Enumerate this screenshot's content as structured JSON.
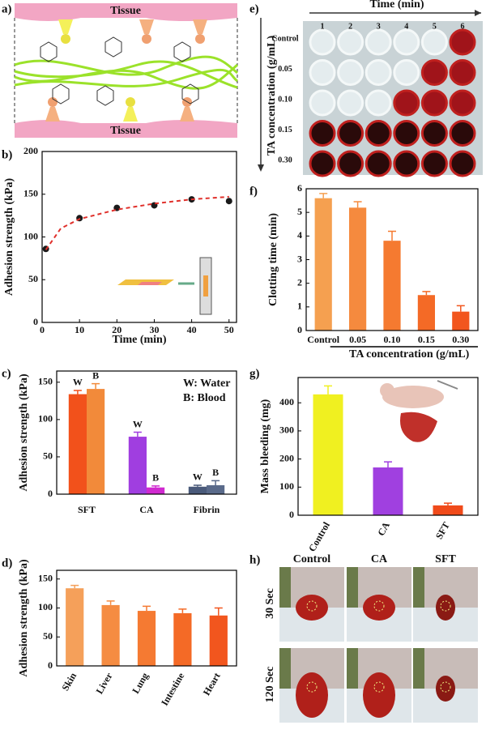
{
  "panels": {
    "a": {
      "label": "a)",
      "tissue_top": "Tissue",
      "tissue_bottom": "Tissue"
    },
    "e": {
      "label": "e)",
      "x_title": "Time (min)",
      "columns": [
        "1",
        "2",
        "3",
        "4",
        "5",
        "6"
      ],
      "y_title": "TA concentration (g/mL)",
      "rows": [
        "Control",
        "0.05",
        "0.10",
        "0.15",
        "0.30"
      ]
    },
    "h": {
      "label": "h)",
      "columns": [
        "Control",
        "CA",
        "SFT"
      ],
      "rows": [
        "30 Sec",
        "120 Sec"
      ]
    }
  },
  "chart_data": [
    {
      "type": "scatter",
      "label": "b)",
      "xlabel": "Time (min)",
      "ylabel": "Adhesion strength (kPa)",
      "xlim": [
        0,
        52
      ],
      "xticks": [
        0,
        10,
        20,
        30,
        40,
        50
      ],
      "ylim": [
        0,
        200
      ],
      "yticks": [
        0,
        50,
        100,
        150,
        200
      ],
      "series": [
        {
          "color": "#1a1a1a",
          "x": [
            1,
            10,
            20,
            30,
            40,
            50
          ],
          "values": [
            86,
            122,
            134,
            137,
            144,
            142
          ]
        },
        {
          "color": "#e0302b",
          "line_style": "dashed",
          "x": [
            1,
            5,
            10,
            20,
            30,
            40,
            50
          ],
          "values": [
            85,
            110,
            121,
            132,
            139,
            144,
            147
          ]
        }
      ]
    },
    {
      "type": "bar",
      "label": "c)",
      "ylabel": "Adhesion strength (kPa)",
      "categories": [
        "SFT",
        "CA",
        "Fibrin"
      ],
      "ylim": [
        0,
        165
      ],
      "yticks": [
        0,
        50,
        100,
        150
      ],
      "annotations": [
        "W: Water",
        "B: Blood"
      ],
      "series": [
        {
          "name": "W",
          "colors": [
            "#f2511b",
            "#a03ee0",
            "#4a5a7a"
          ],
          "values": [
            134,
            77,
            10
          ],
          "errors": [
            5,
            6,
            2
          ]
        },
        {
          "name": "B",
          "colors": [
            "#f28a3a",
            "#d02ad0",
            "#5a6a8a"
          ],
          "values": [
            141,
            9,
            12
          ],
          "errors": [
            7,
            2,
            6
          ]
        }
      ]
    },
    {
      "type": "bar",
      "label": "d)",
      "ylabel": "Adhesion strength (kPa)",
      "categories": [
        "Skin",
        "Liver",
        "Lung",
        "Intestine",
        "Heart"
      ],
      "ylim": [
        0,
        165
      ],
      "yticks": [
        0,
        50,
        100,
        150
      ],
      "rotate_labels": true,
      "series": [
        {
          "colors": [
            "#f5a05a",
            "#f58c42",
            "#f57a32",
            "#f46a26",
            "#f2561e"
          ],
          "values": [
            134,
            105,
            95,
            91,
            87
          ],
          "errors": [
            5,
            7,
            8,
            7,
            13
          ]
        }
      ]
    },
    {
      "type": "bar",
      "label": "f)",
      "ylabel": "Clotting time (min)",
      "xlabel": "TA concentration (g/mL)",
      "categories": [
        "Control",
        "0.05",
        "0.10",
        "0.15",
        "0.30"
      ],
      "ylim": [
        0,
        6
      ],
      "yticks": [
        0,
        1,
        2,
        3,
        4,
        5,
        6
      ],
      "series": [
        {
          "colors": [
            "#f5a050",
            "#f58a3e",
            "#f57a30",
            "#f46a26",
            "#f2561e"
          ],
          "values": [
            5.6,
            5.2,
            3.8,
            1.5,
            0.8
          ],
          "errors": [
            0.2,
            0.25,
            0.4,
            0.15,
            0.25
          ]
        }
      ]
    },
    {
      "type": "bar",
      "label": "g)",
      "ylabel": "Mass bleeding (mg)",
      "categories": [
        "Control",
        "CA",
        "SFT"
      ],
      "ylim": [
        0,
        490
      ],
      "yticks": [
        0,
        100,
        200,
        300,
        400
      ],
      "rotate_labels": true,
      "series": [
        {
          "colors": [
            "#f0f020",
            "#a040e0",
            "#f04a1a"
          ],
          "values": [
            430,
            170,
            35
          ],
          "errors": [
            30,
            20,
            8
          ]
        }
      ]
    }
  ]
}
